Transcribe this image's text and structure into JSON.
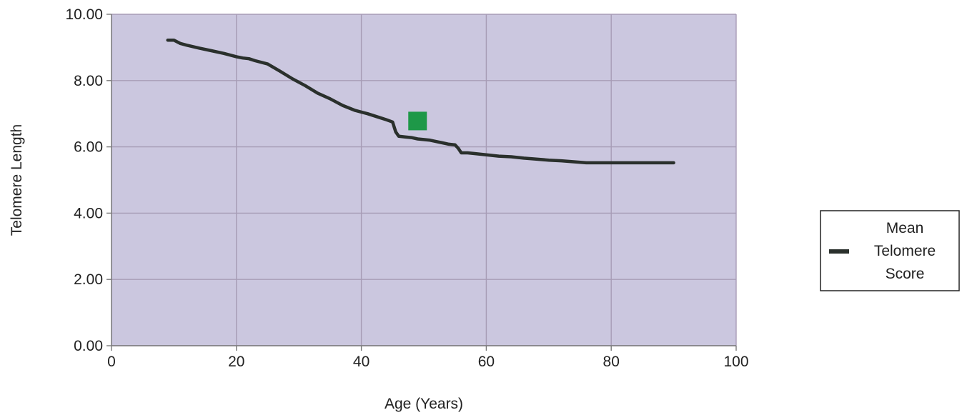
{
  "chart_data": {
    "type": "line",
    "title": "",
    "xlabel": "Age (Years)",
    "ylabel": "Telomere Length",
    "xlim": [
      0,
      100
    ],
    "ylim": [
      0,
      10
    ],
    "x_ticks": [
      {
        "value": 0,
        "label": "0"
      },
      {
        "value": 20,
        "label": "20"
      },
      {
        "value": 40,
        "label": "40"
      },
      {
        "value": 60,
        "label": "60"
      },
      {
        "value": 80,
        "label": "80"
      },
      {
        "value": 100,
        "label": "100"
      }
    ],
    "y_ticks": [
      {
        "value": 0,
        "label": "0.00"
      },
      {
        "value": 2,
        "label": "2.00"
      },
      {
        "value": 4,
        "label": "4.00"
      },
      {
        "value": 6,
        "label": "6.00"
      },
      {
        "value": 8,
        "label": "8.00"
      },
      {
        "value": 10,
        "label": "10.00"
      }
    ],
    "grid": true,
    "legend": {
      "placement": "right",
      "entries": [
        "Mean Telomere Score"
      ],
      "label_lines": [
        "Mean",
        "Telomere",
        "Score"
      ]
    },
    "series": [
      {
        "name": "Mean Telomere Score",
        "type": "line",
        "color": "#2a302c",
        "x": [
          9,
          10,
          11,
          12,
          14,
          16,
          18,
          20,
          21,
          22,
          23,
          25,
          27,
          29,
          31,
          33,
          35,
          37,
          39,
          41,
          43,
          44,
          45,
          45.5,
          46,
          47,
          48,
          49,
          50,
          51,
          52,
          53,
          54,
          55,
          55.5,
          56,
          57,
          58,
          60,
          62,
          64,
          66,
          68,
          70,
          72,
          74,
          76,
          78,
          80,
          82,
          84,
          86,
          88,
          90
        ],
        "y": [
          9.22,
          9.22,
          9.12,
          9.07,
          8.98,
          8.9,
          8.82,
          8.72,
          8.68,
          8.66,
          8.6,
          8.5,
          8.28,
          8.05,
          7.85,
          7.62,
          7.45,
          7.25,
          7.1,
          7.0,
          6.88,
          6.82,
          6.75,
          6.45,
          6.32,
          6.3,
          6.28,
          6.24,
          6.22,
          6.2,
          6.16,
          6.12,
          6.08,
          6.06,
          5.96,
          5.82,
          5.82,
          5.8,
          5.76,
          5.72,
          5.7,
          5.66,
          5.63,
          5.6,
          5.58,
          5.55,
          5.52,
          5.52,
          5.52,
          5.52,
          5.52,
          5.52,
          5.52,
          5.52
        ]
      },
      {
        "name": "",
        "type": "scatter",
        "marker": "square",
        "color": "#1e9848",
        "x": [
          49
        ],
        "y": [
          6.78
        ]
      }
    ],
    "colors": {
      "plot_background": "#cbc7df",
      "grid": "#a79cb6",
      "axis": "#7a7a7a",
      "text": "#222222",
      "legend_border": "#222222"
    }
  }
}
